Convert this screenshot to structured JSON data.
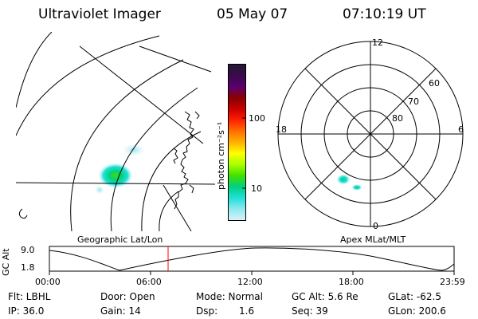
{
  "header": {
    "title": "Ultraviolet Imager",
    "date": "05 May 07",
    "time": "07:10:19 UT"
  },
  "geo_panel": {
    "label": "Geographic Lat/Lon"
  },
  "colorbar": {
    "unit_label": "photon cm⁻²s⁻¹",
    "ticks": [
      "100",
      "10"
    ],
    "colors": [
      "#221a33",
      "#3a0a4a",
      "#5a0070",
      "#8a0000",
      "#c80000",
      "#ff2000",
      "#ff7000",
      "#ffb000",
      "#ffff00",
      "#a8ff00",
      "#40e000",
      "#00d080",
      "#20e0d8",
      "#90e8f0",
      "#d8f2f8"
    ]
  },
  "polar_panel": {
    "label": "Apex MLat/MLT",
    "mlt_labels": {
      "top": "12",
      "left": "18",
      "right": "6",
      "bottom": "0"
    },
    "lat_labels": [
      "60",
      "70",
      "80"
    ]
  },
  "altitude_plot": {
    "ylabel": "GC Alt",
    "yticks": [
      "9.0",
      "1.8"
    ],
    "xticks": [
      "00:00",
      "06:00",
      "12:00",
      "18:00",
      "23:59"
    ],
    "marker_color": "#ff0000"
  },
  "info": {
    "flt": "Flt: LBHL",
    "door": "Door: Open",
    "mode": "Mode: Normal",
    "gcalt": "GC Alt: 5.6 Re",
    "glat": "GLat: -62.5",
    "ip": "IP: 36.0",
    "gain": "Gain: 14",
    "dsp_label": "Dsp:",
    "dsp_value": "1.6",
    "seq": "Seq: 39",
    "glon": "GLon: 200.6"
  }
}
